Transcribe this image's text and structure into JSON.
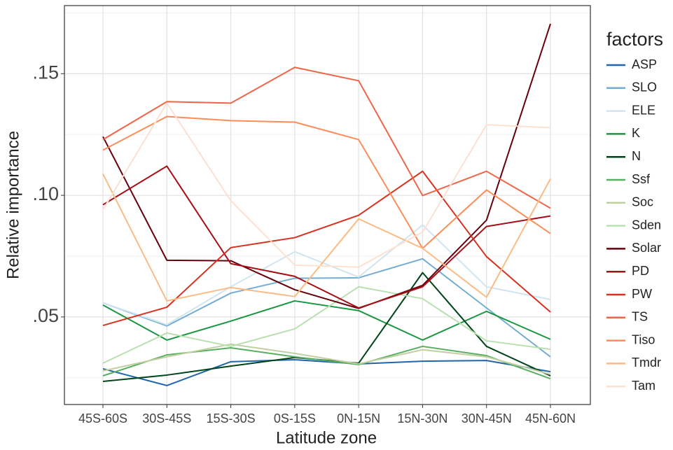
{
  "chart_data": {
    "type": "line",
    "x_label": "Latitude zone",
    "y_label": "Relative importance",
    "legend_title": "factors",
    "categories": [
      "45S-60S",
      "30S-45S",
      "15S-30S",
      "0S-15S",
      "0N-15N",
      "15N-30N",
      "30N-45N",
      "45N-60N"
    ],
    "ylim": [
      0.014,
      0.178
    ],
    "yticks": [
      {
        "value": 0.05,
        "label": ".05"
      },
      {
        "value": 0.1,
        "label": ".10"
      },
      {
        "value": 0.15,
        "label": ".15"
      }
    ],
    "yminor": [
      0.025,
      0.075,
      0.125,
      0.175
    ],
    "grid": true,
    "legend": "right",
    "series": [
      {
        "name": "ASP",
        "color": "#2166ac",
        "values": [
          0.0287,
          0.0218,
          0.0316,
          0.0324,
          0.0307,
          0.0318,
          0.0321,
          0.0275
        ]
      },
      {
        "name": "SLO",
        "color": "#74add1",
        "values": [
          0.0558,
          0.0463,
          0.0598,
          0.0659,
          0.0661,
          0.0739,
          0.0537,
          0.0336
        ]
      },
      {
        "name": "ELE",
        "color": "#d1e5f0",
        "values": [
          0.0558,
          0.0468,
          0.0624,
          0.0768,
          0.0664,
          0.0878,
          0.0624,
          0.0572
        ]
      },
      {
        "name": "K",
        "color": "#1a9641",
        "values": [
          0.0549,
          0.0405,
          0.0483,
          0.0566,
          0.0526,
          0.0405,
          0.0523,
          0.0408
        ]
      },
      {
        "name": "N",
        "color": "#00441b",
        "values": [
          0.0235,
          0.0261,
          0.0298,
          0.0333,
          0.031,
          0.0682,
          0.0379,
          0.0258
        ]
      },
      {
        "name": "Ssf",
        "color": "#5aae61",
        "values": [
          0.0258,
          0.0344,
          0.0373,
          0.0336,
          0.0304,
          0.0379,
          0.0341,
          0.0246
        ]
      },
      {
        "name": "Soc",
        "color": "#c2cfa0",
        "values": [
          0.0278,
          0.0336,
          0.0388,
          0.035,
          0.0307,
          0.0365,
          0.0336,
          0.0264
        ]
      },
      {
        "name": "Sden",
        "color": "#b8e0b0",
        "values": [
          0.031,
          0.0434,
          0.0379,
          0.0451,
          0.0624,
          0.0575,
          0.0402,
          0.0367
        ]
      },
      {
        "name": "Solar",
        "color": "#67000d",
        "values": [
          0.1241,
          0.0733,
          0.0731,
          0.0612,
          0.0535,
          0.063,
          0.0898,
          0.1705
        ]
      },
      {
        "name": "PD",
        "color": "#a50f15",
        "values": [
          0.0961,
          0.112,
          0.0719,
          0.0667,
          0.0537,
          0.0624,
          0.0872,
          0.0915
        ]
      },
      {
        "name": "PW",
        "color": "#d7301f",
        "values": [
          0.0465,
          0.054,
          0.0785,
          0.0826,
          0.0918,
          0.1099,
          0.0748,
          0.052
        ]
      },
      {
        "name": "TS",
        "color": "#ef6548",
        "values": [
          0.1229,
          0.1385,
          0.1379,
          0.1526,
          0.1471,
          0.0999,
          0.1099,
          0.0947
        ]
      },
      {
        "name": "Tiso",
        "color": "#fc8d59",
        "values": [
          0.1186,
          0.1324,
          0.1307,
          0.1301,
          0.1229,
          0.0782,
          0.1022,
          0.0843
        ]
      },
      {
        "name": "Tmdr",
        "color": "#fdbb84",
        "values": [
          0.1088,
          0.0566,
          0.0621,
          0.0584,
          0.0903,
          0.0782,
          0.0581,
          0.1068
        ]
      },
      {
        "name": "Tam",
        "color": "#fee0d2",
        "values": [
          0.0941,
          0.1379,
          0.0978,
          0.0713,
          0.0705,
          0.0849,
          0.129,
          0.1278
        ]
      }
    ]
  }
}
